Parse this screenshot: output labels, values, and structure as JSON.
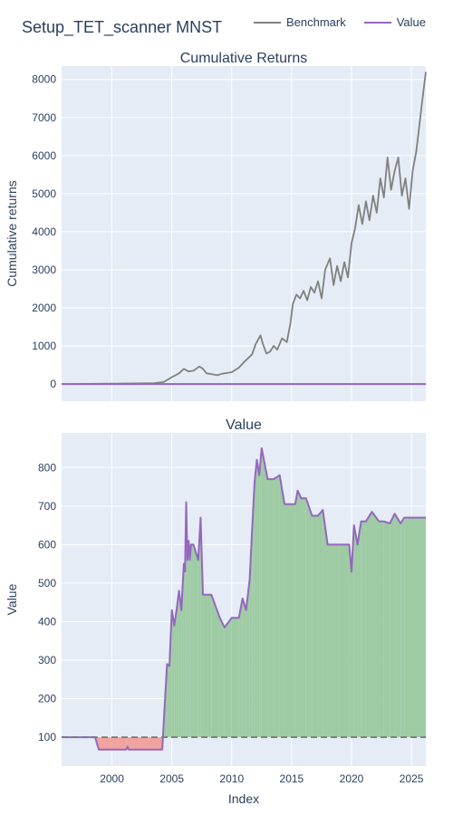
{
  "figure": {
    "title": "Setup_TET_scanner MNST",
    "legend": [
      {
        "label": "Benchmark",
        "color": "#808080"
      },
      {
        "label": "Value",
        "color": "#9467bd"
      }
    ],
    "colors": {
      "plot_bg": "#e5ecf6",
      "grid": "#ffffff",
      "positive_fill": "#9ecba4",
      "negative_fill": "#f0a39f"
    }
  },
  "chart_data": [
    {
      "type": "line",
      "title": "Cumulative Returns",
      "xlabel": "",
      "ylabel": "Cumulative returns",
      "xlim": [
        1995.8,
        2026.2
      ],
      "ylim": [
        -450,
        8350
      ],
      "yticks": [
        0,
        1000,
        2000,
        3000,
        4000,
        5000,
        6000,
        7000,
        8000
      ],
      "ytick_labels": [
        "0",
        "1000",
        "2000",
        "3000",
        "4000",
        "5000",
        "6000",
        "7000",
        "8000"
      ],
      "grid": true,
      "baseline": 0,
      "series": [
        {
          "name": "Benchmark",
          "color": "#808080",
          "x": [
            1995.8,
            1998,
            2000,
            2002,
            2003.5,
            2004.3,
            2005,
            2005.6,
            2006.0,
            2006.4,
            2006.8,
            2007.3,
            2007.6,
            2007.9,
            2008.3,
            2008.8,
            2009.2,
            2009.6,
            2010.0,
            2010.6,
            2011.1,
            2011.7,
            2012.0,
            2012.4,
            2012.6,
            2012.9,
            2013.2,
            2013.5,
            2013.8,
            2014.2,
            2014.6,
            2014.9,
            2015.1,
            2015.4,
            2015.7,
            2016.0,
            2016.3,
            2016.6,
            2016.9,
            2017.2,
            2017.5,
            2017.8,
            2018.2,
            2018.5,
            2018.8,
            2019.1,
            2019.4,
            2019.7,
            2020.0,
            2020.3,
            2020.6,
            2020.9,
            2021.2,
            2021.5,
            2021.8,
            2022.1,
            2022.4,
            2022.7,
            2023.0,
            2023.3,
            2023.6,
            2023.9,
            2024.2,
            2024.5,
            2024.8,
            2025.1,
            2025.4,
            2025.7,
            2026.0,
            2026.2
          ],
          "values": [
            0,
            5,
            10,
            15,
            20,
            50,
            180,
            280,
            400,
            330,
            350,
            460,
            400,
            280,
            260,
            230,
            270,
            290,
            310,
            430,
            600,
            780,
            1050,
            1280,
            1050,
            800,
            850,
            1000,
            900,
            1200,
            1100,
            1600,
            2100,
            2350,
            2250,
            2450,
            2200,
            2550,
            2400,
            2700,
            2250,
            3000,
            3300,
            2600,
            3100,
            2700,
            3200,
            2800,
            3700,
            4100,
            4700,
            4200,
            4800,
            4300,
            4950,
            4500,
            5400,
            4900,
            5950,
            5100,
            5600,
            5950,
            4950,
            5400,
            4600,
            5600,
            6100,
            6900,
            7700,
            8200
          ]
        },
        {
          "name": "Value",
          "color": "#9467bd",
          "x": [
            1995.8,
            2026.2
          ],
          "values": [
            0,
            0
          ]
        }
      ]
    },
    {
      "type": "area",
      "title": "Value",
      "xlabel": "Index",
      "ylabel": "Value",
      "xlim": [
        1995.8,
        2026.2
      ],
      "ylim": [
        25,
        890
      ],
      "xticks": [
        2000,
        2005,
        2010,
        2015,
        2020,
        2025
      ],
      "xtick_labels": [
        "2000",
        "2005",
        "2010",
        "2015",
        "2020",
        "2025"
      ],
      "yticks": [
        100,
        200,
        300,
        400,
        500,
        600,
        700,
        800
      ],
      "ytick_labels": [
        "100",
        "200",
        "300",
        "400",
        "500",
        "600",
        "700",
        "800"
      ],
      "grid": true,
      "baseline": 100,
      "series": [
        {
          "name": "Value",
          "color": "#9467bd",
          "x": [
            1995.8,
            1998.6,
            1998.9,
            2001.2,
            2001.3,
            2001.4,
            2004.2,
            2004.4,
            2004.6,
            2004.8,
            2005.0,
            2005.2,
            2005.4,
            2005.6,
            2005.8,
            2006.0,
            2006.1,
            2006.2,
            2006.3,
            2006.4,
            2006.5,
            2006.6,
            2006.8,
            2007.2,
            2007.4,
            2007.6,
            2008.3,
            2009.0,
            2009.4,
            2010.0,
            2010.6,
            2010.9,
            2011.2,
            2011.5,
            2011.7,
            2011.9,
            2012.1,
            2012.3,
            2012.5,
            2013.0,
            2013.5,
            2014.0,
            2014.4,
            2015.3,
            2015.5,
            2015.8,
            2016.2,
            2016.7,
            2017.2,
            2017.6,
            2018.0,
            2018.3,
            2019.0,
            2019.8,
            2020.0,
            2020.2,
            2020.5,
            2020.8,
            2021.2,
            2021.7,
            2022.3,
            2022.7,
            2023.2,
            2023.6,
            2024.1,
            2024.4,
            2026.2
          ],
          "values": [
            100,
            100,
            68,
            68,
            75,
            68,
            68,
            180,
            290,
            285,
            430,
            390,
            430,
            480,
            430,
            550,
            530,
            710,
            560,
            610,
            560,
            600,
            600,
            560,
            670,
            470,
            470,
            410,
            385,
            410,
            410,
            460,
            430,
            510,
            640,
            760,
            820,
            780,
            850,
            770,
            770,
            780,
            705,
            705,
            740,
            720,
            720,
            675,
            675,
            690,
            600,
            600,
            600,
            600,
            530,
            650,
            600,
            660,
            660,
            685,
            660,
            660,
            655,
            680,
            655,
            670,
            670
          ]
        }
      ]
    }
  ]
}
